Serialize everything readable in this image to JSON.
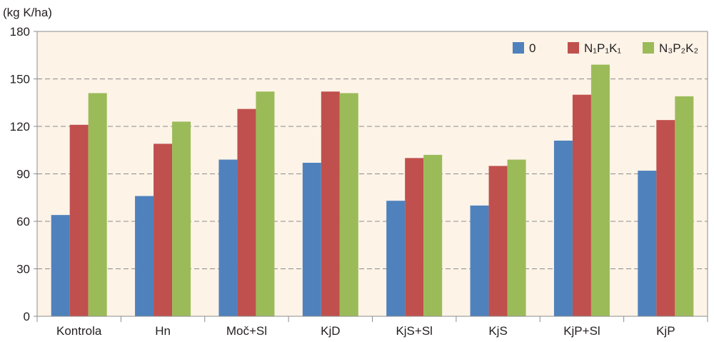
{
  "chart_data": {
    "type": "bar",
    "ylabel": "(kg K/ha)",
    "ylim": [
      0,
      180
    ],
    "yticks": [
      0,
      30,
      60,
      90,
      120,
      150,
      180
    ],
    "grid": true,
    "legend_position": "top-right",
    "colors": {
      "plot_bg": "#fdf3e7",
      "grid": "#8c8c8c",
      "axis": "#8c8c8c"
    },
    "categories": [
      "Kontrola",
      "Hn",
      "Moč+Sl",
      "KjD",
      "KjS+Sl",
      "KjS",
      "KjP+Sl",
      "KjP"
    ],
    "series": [
      {
        "name": "0",
        "color": "#4f81bd",
        "values": [
          64,
          76,
          99,
          97,
          73,
          70,
          111,
          92
        ]
      },
      {
        "name": "N₁P₁K₁",
        "color": "#c0504d",
        "values": [
          121,
          109,
          131,
          142,
          100,
          95,
          140,
          124
        ]
      },
      {
        "name": "N₃P₂K₂",
        "color": "#9bbb59",
        "values": [
          141,
          123,
          142,
          141,
          102,
          99,
          159,
          139
        ]
      }
    ]
  }
}
